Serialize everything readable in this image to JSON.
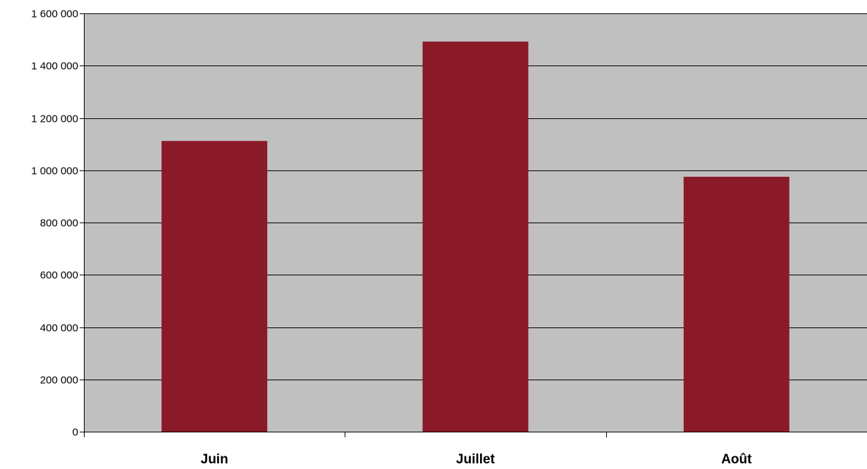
{
  "chart_data": {
    "type": "bar",
    "title": "",
    "xlabel": "",
    "ylabel": "",
    "categories": [
      "Juin",
      "Juillet",
      "Août"
    ],
    "series": [
      {
        "values": [
          1112000,
          1492000,
          975000
        ]
      }
    ],
    "ylim": [
      0,
      1600000
    ],
    "yticks": [
      0,
      200000,
      400000,
      600000,
      800000,
      1000000,
      1200000,
      1400000,
      1600000
    ],
    "ytick_labels": [
      "0",
      "200 000",
      "400 000",
      "600 000",
      "800 000",
      "1 000 000",
      "1 200 000",
      "1 400 000",
      "1 600 000"
    ],
    "grid": true,
    "legend": "none",
    "colors": {
      "bar": "#8B1A28",
      "plot_background": "#C0C0C0",
      "gridline": "#000000",
      "axis": "#000000"
    }
  }
}
